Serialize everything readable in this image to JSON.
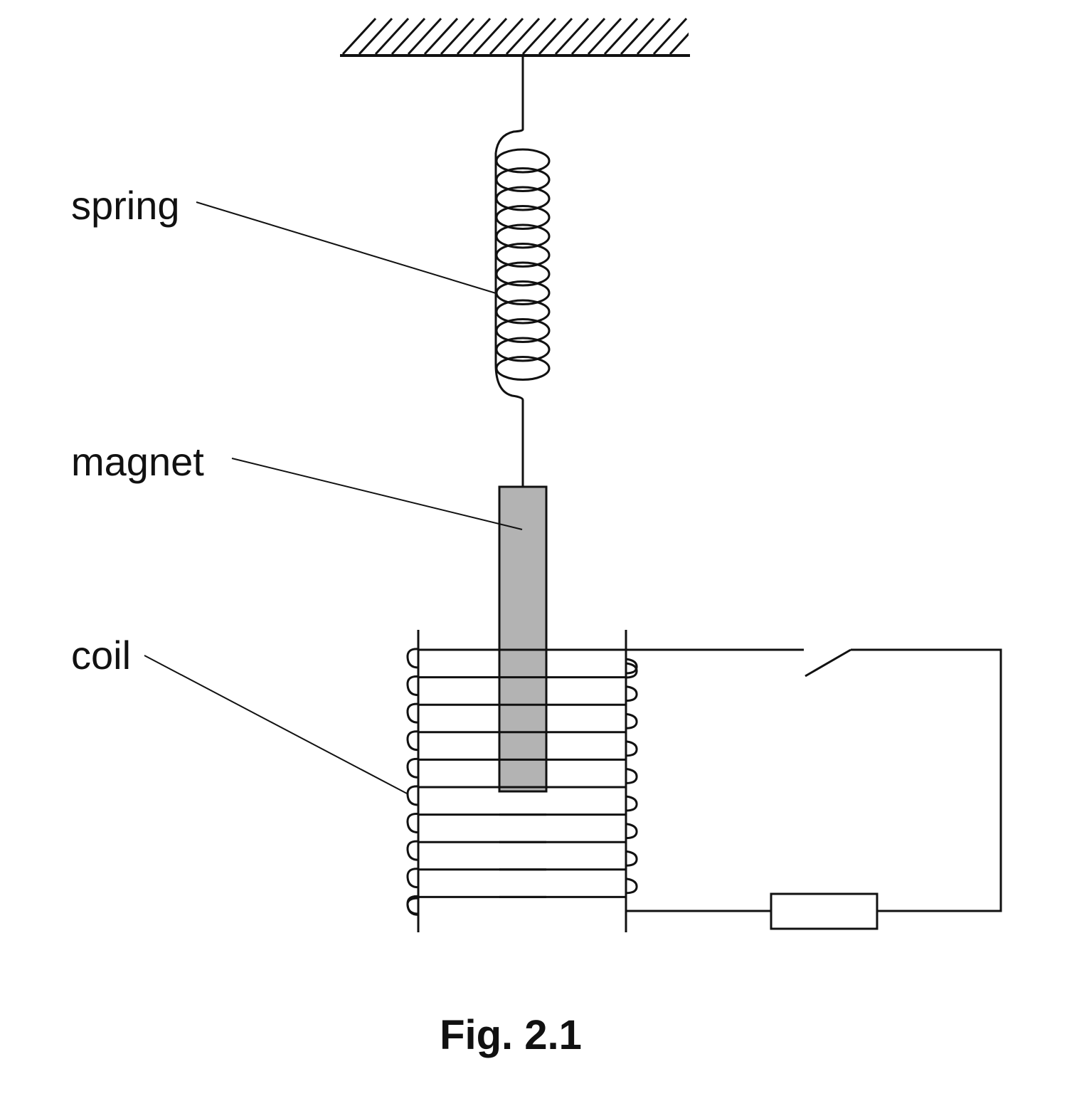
{
  "labels": {
    "spring": "spring",
    "magnet": "magnet",
    "coil": "coil"
  },
  "caption": "Fig. 2.1",
  "colors": {
    "stroke": "#111111",
    "magnet_fill": "#b3b3b3",
    "background": "#ffffff"
  }
}
